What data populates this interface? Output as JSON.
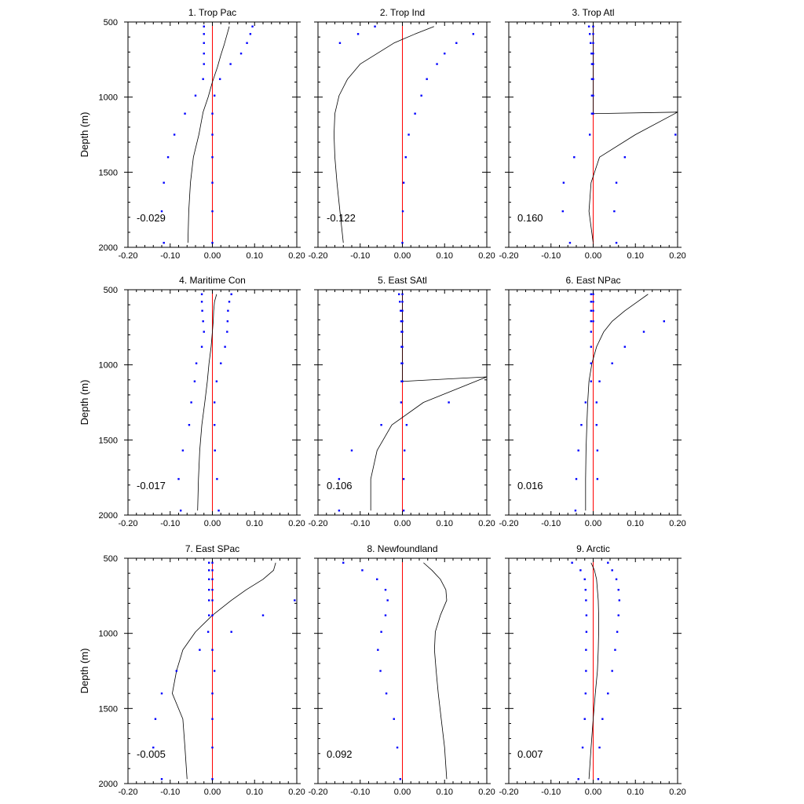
{
  "chart_data": {
    "type": "line",
    "ylabel": "Depth (m)",
    "ylim": [
      2000,
      500
    ],
    "xlim": [
      -0.2,
      0.2
    ],
    "yticks": [
      "500",
      "1000",
      "1500",
      "2000"
    ],
    "xticks": [
      "-0.20",
      "-0.10",
      "0.00",
      "0.10",
      "0.20"
    ],
    "colors": {
      "line": "#000000",
      "zero_line": "#ff0000",
      "bounds": "#0000ff"
    },
    "panels": [
      {
        "title": "1. Trop Pac",
        "stat": "-0.029",
        "line": {
          "x": [
            0.04,
            0.035,
            0.028,
            0.02,
            0.012,
            0.0,
            -0.01,
            -0.022,
            -0.032,
            -0.045,
            -0.052,
            -0.056,
            -0.058
          ],
          "y": [
            530,
            580,
            650,
            720,
            800,
            900,
            1000,
            1100,
            1250,
            1400,
            1570,
            1760,
            1970
          ]
        },
        "lower": {
          "x": [
            -0.02,
            -0.02,
            -0.02,
            -0.02,
            -0.02,
            -0.022,
            -0.04,
            -0.065,
            -0.09,
            -0.105,
            -0.115,
            -0.12,
            -0.115
          ],
          "y": [
            530,
            580,
            640,
            710,
            780,
            880,
            990,
            1110,
            1250,
            1400,
            1570,
            1760,
            1970
          ]
        },
        "upper": {
          "x": [
            0.095,
            0.09,
            0.082,
            0.068,
            0.043,
            0.018,
            0.005,
            0.0,
            0.0,
            0.0,
            0.0,
            0.0,
            0.0
          ],
          "y": [
            530,
            580,
            640,
            710,
            780,
            880,
            990,
            1110,
            1250,
            1400,
            1570,
            1760,
            1970
          ]
        }
      },
      {
        "title": "2. Trop Ind",
        "stat": "-0.122",
        "line": {
          "x": [
            0.075,
            0.03,
            -0.02,
            -0.06,
            -0.1,
            -0.13,
            -0.15,
            -0.16,
            -0.162,
            -0.16,
            -0.155,
            -0.148,
            -0.14
          ],
          "y": [
            530,
            580,
            640,
            710,
            780,
            880,
            990,
            1110,
            1250,
            1400,
            1570,
            1760,
            1970
          ]
        },
        "lower": {
          "x": [
            -0.065,
            -0.105,
            -0.148
          ],
          "y": [
            530,
            580,
            640
          ]
        },
        "upper": {
          "x": [
            0.168,
            0.128,
            0.1,
            0.082,
            0.058,
            0.045,
            0.03,
            0.015,
            0.008,
            0.003,
            0.001,
            0.0
          ],
          "y": [
            580,
            640,
            710,
            780,
            880,
            990,
            1110,
            1250,
            1400,
            1570,
            1760,
            1970
          ]
        }
      },
      {
        "title": "3. Trop Atl",
        "stat": "0.160",
        "line": {
          "x": [
            0.0,
            0.0,
            0.0,
            0.0,
            0.0,
            0.0,
            0.0,
            0.0,
            0.2,
            0.1,
            0.015,
            -0.005,
            -0.01,
            0.0
          ],
          "y": [
            530,
            580,
            640,
            710,
            780,
            880,
            990,
            1110,
            1100,
            1250,
            1400,
            1570,
            1760,
            1970
          ]
        },
        "lower": {
          "x": [
            -0.01,
            -0.008,
            -0.006,
            -0.004,
            -0.003,
            -0.003,
            -0.003,
            -0.003,
            -0.008,
            -0.045,
            -0.07,
            -0.072,
            -0.055
          ],
          "y": [
            530,
            580,
            640,
            710,
            780,
            880,
            990,
            1110,
            1250,
            1400,
            1570,
            1760,
            1970
          ]
        },
        "upper": {
          "x": [
            0.0,
            0.0,
            0.0,
            0.0,
            0.0,
            0.0,
            0.0,
            0.0,
            0.195,
            0.075,
            0.055,
            0.05,
            0.055
          ],
          "y": [
            530,
            580,
            640,
            710,
            780,
            880,
            990,
            1110,
            1250,
            1400,
            1570,
            1760,
            1970
          ]
        }
      },
      {
        "title": "4. Maritime Con",
        "stat": "-0.017",
        "line": {
          "x": [
            0.01,
            0.005,
            0.003,
            0.002,
            0.0,
            -0.003,
            -0.008,
            -0.012,
            -0.018,
            -0.025,
            -0.03,
            -0.033,
            -0.035
          ],
          "y": [
            530,
            580,
            640,
            710,
            780,
            880,
            990,
            1110,
            1250,
            1400,
            1570,
            1760,
            1970
          ]
        },
        "lower": {
          "x": [
            -0.025,
            -0.025,
            -0.024,
            -0.022,
            -0.02,
            -0.025,
            -0.038,
            -0.042,
            -0.05,
            -0.055,
            -0.07,
            -0.08,
            -0.075
          ],
          "y": [
            530,
            580,
            640,
            710,
            780,
            880,
            990,
            1110,
            1250,
            1400,
            1570,
            1760,
            1970
          ]
        },
        "upper": {
          "x": [
            0.045,
            0.04,
            0.037,
            0.036,
            0.035,
            0.03,
            0.02,
            0.01,
            0.005,
            0.005,
            0.006,
            0.011,
            0.015
          ],
          "y": [
            530,
            580,
            640,
            710,
            780,
            880,
            990,
            1110,
            1250,
            1400,
            1570,
            1760,
            1970
          ]
        }
      },
      {
        "title": "5. East SAtl",
        "stat": "0.106",
        "line": {
          "x": [
            0.0,
            0.0,
            0.0,
            0.0,
            0.0,
            0.0,
            0.0,
            0.0,
            0.2,
            0.05,
            -0.025,
            -0.06,
            -0.075,
            -0.075
          ],
          "y": [
            530,
            580,
            640,
            710,
            780,
            880,
            990,
            1110,
            1080,
            1250,
            1400,
            1570,
            1760,
            1970
          ]
        },
        "lower": {
          "x": [
            -0.008,
            -0.006,
            -0.004,
            -0.003,
            -0.002,
            -0.002,
            -0.002,
            -0.002,
            -0.003,
            -0.05,
            -0.12,
            -0.15,
            -0.15
          ],
          "y": [
            530,
            580,
            640,
            710,
            780,
            880,
            990,
            1110,
            1250,
            1400,
            1570,
            1760,
            1970
          ]
        },
        "upper": {
          "x": [
            0.0,
            0.0,
            0.0,
            0.0,
            0.0,
            0.0,
            0.0,
            0.0,
            0.11,
            0.01,
            0.005,
            0.003,
            0.003
          ],
          "y": [
            530,
            580,
            640,
            710,
            780,
            880,
            990,
            1110,
            1250,
            1400,
            1570,
            1760,
            1970
          ]
        }
      },
      {
        "title": "6. East NPac",
        "stat": "0.016",
        "line": {
          "x": [
            0.13,
            0.105,
            0.075,
            0.045,
            0.025,
            0.008,
            -0.003,
            -0.01,
            -0.013,
            -0.015,
            -0.017,
            -0.018,
            -0.018
          ],
          "y": [
            530,
            580,
            640,
            710,
            780,
            880,
            990,
            1110,
            1250,
            1400,
            1570,
            1760,
            1970
          ]
        },
        "lower": {
          "x": [
            -0.005,
            -0.005,
            -0.005,
            -0.005,
            -0.005,
            -0.005,
            -0.005,
            -0.005,
            -0.018,
            -0.028,
            -0.035,
            -0.04,
            -0.042
          ],
          "y": [
            530,
            580,
            640,
            710,
            780,
            880,
            990,
            1110,
            1250,
            1400,
            1570,
            1760,
            1970
          ]
        },
        "upper": {
          "x": [
            0.0,
            0.0,
            0.0,
            0.0,
            0.168,
            0.12,
            0.075,
            0.045,
            0.015,
            0.008,
            0.008,
            0.01,
            0.01
          ],
          "y": [
            530,
            580,
            640,
            710,
            710,
            780,
            880,
            990,
            1110,
            1250,
            1400,
            1570,
            1760
          ]
        }
      },
      {
        "title": "7. East SPac",
        "stat": "-0.005",
        "line": {
          "x": [
            0.15,
            0.145,
            0.12,
            0.08,
            0.045,
            0.0,
            -0.04,
            -0.07,
            -0.085,
            -0.095,
            -0.07,
            -0.065,
            -0.06
          ],
          "y": [
            530,
            580,
            640,
            710,
            780,
            880,
            990,
            1110,
            1250,
            1400,
            1570,
            1760,
            1970
          ]
        },
        "lower": {
          "x": [
            -0.008,
            -0.008,
            -0.008,
            -0.008,
            -0.008,
            -0.008,
            -0.01,
            -0.03,
            -0.085,
            -0.12,
            -0.135,
            -0.14,
            -0.12
          ],
          "y": [
            530,
            580,
            640,
            710,
            780,
            880,
            990,
            1110,
            1250,
            1400,
            1570,
            1760,
            1970
          ]
        },
        "upper": {
          "x": [
            0.0,
            0.0,
            0.0,
            0.0,
            0.0,
            0.0,
            0.0,
            0.195,
            0.12,
            0.045,
            0.005,
            0.0,
            0.0,
            0.0,
            0.0
          ],
          "y": [
            530,
            580,
            640,
            710,
            780,
            880,
            1110,
            780,
            880,
            990,
            1250,
            1400,
            1570,
            1760,
            1970
          ]
        }
      },
      {
        "title": "8. Newfoundland",
        "stat": "0.092",
        "line": {
          "x": [
            0.05,
            0.07,
            0.09,
            0.103,
            0.105,
            0.09,
            0.078,
            0.076,
            0.08,
            0.085,
            0.092,
            0.1,
            0.105
          ],
          "y": [
            530,
            580,
            640,
            710,
            780,
            880,
            990,
            1110,
            1250,
            1400,
            1570,
            1760,
            1970
          ]
        },
        "lower": {
          "x": [
            -0.14,
            -0.095,
            -0.06,
            -0.04,
            -0.035,
            -0.04,
            -0.05,
            -0.058,
            -0.052,
            -0.038,
            -0.02,
            -0.012,
            -0.005
          ],
          "y": [
            530,
            580,
            640,
            710,
            780,
            880,
            990,
            1110,
            1250,
            1400,
            1570,
            1760,
            1970
          ]
        },
        "upper": {
          "x": [],
          "y": []
        }
      },
      {
        "title": "9. Arctic",
        "stat": "0.007",
        "line": {
          "x": [
            -0.005,
            0.003,
            0.008,
            0.01,
            0.012,
            0.013,
            0.013,
            0.012,
            0.01,
            0.005,
            0.0,
            -0.005,
            -0.01
          ],
          "y": [
            530,
            580,
            640,
            710,
            780,
            880,
            990,
            1110,
            1250,
            1400,
            1570,
            1760,
            1970
          ]
        },
        "lower": {
          "x": [
            -0.05,
            -0.03,
            -0.02,
            -0.018,
            -0.017,
            -0.016,
            -0.016,
            -0.017,
            -0.017,
            -0.018,
            -0.02,
            -0.025,
            -0.035
          ],
          "y": [
            530,
            580,
            640,
            710,
            780,
            880,
            990,
            1110,
            1250,
            1400,
            1570,
            1760,
            1970
          ]
        },
        "upper": {
          "x": [
            0.035,
            0.045,
            0.055,
            0.06,
            0.062,
            0.06,
            0.057,
            0.052,
            0.045,
            0.035,
            0.022,
            0.015,
            0.012
          ],
          "y": [
            530,
            580,
            640,
            710,
            780,
            880,
            990,
            1110,
            1250,
            1400,
            1570,
            1760,
            1970
          ]
        }
      }
    ]
  }
}
